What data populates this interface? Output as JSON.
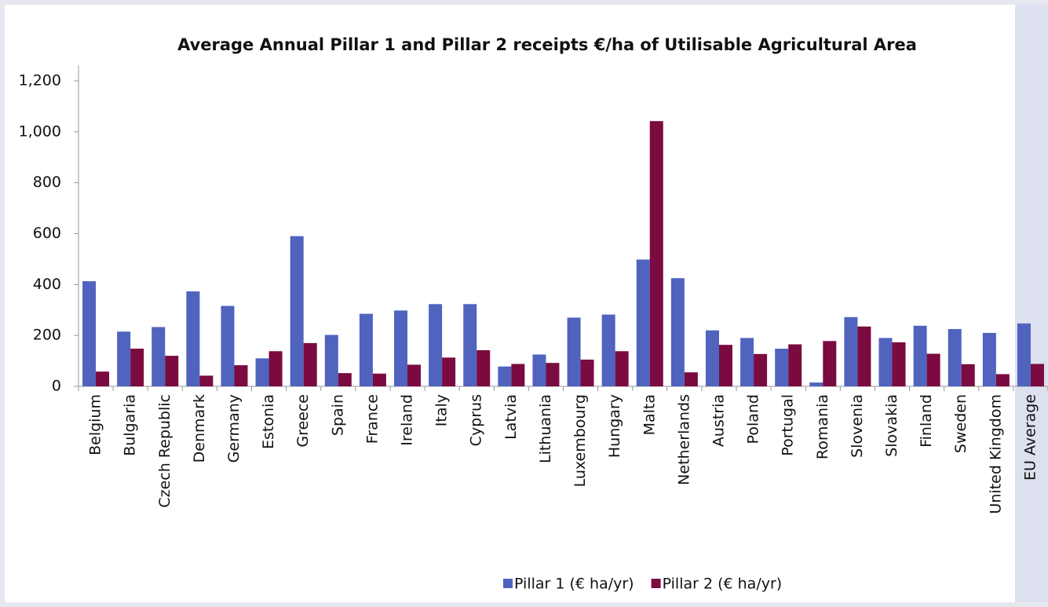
{
  "chart_data": {
    "type": "bar",
    "title": "Average Annual Pillar 1 and Pillar 2 receipts €/ha of Utilisable Agricultural Area",
    "categories": [
      "Belgium",
      "Bulgaria",
      "Czech Republic",
      "Denmark",
      "Germany",
      "Estonia",
      "Greece",
      "Spain",
      "France",
      "Ireland",
      "Italy",
      "Cyprus",
      "Latvia",
      "Lithuania",
      "Luxembourg",
      "Hungary",
      "Malta",
      "Netherlands",
      "Austria",
      "Poland",
      "Portugal",
      "Romania",
      "Slovenia",
      "Slovakia",
      "Finland",
      "Sweden",
      "United Kingdom",
      "EU Average"
    ],
    "series": [
      {
        "name": "Pillar 1 (€ ha/yr)",
        "color": "#4f63bf",
        "values": [
          413,
          215,
          233,
          373,
          316,
          110,
          590,
          202,
          285,
          298,
          323,
          323,
          78,
          125,
          270,
          282,
          498,
          425,
          220,
          190,
          148,
          15,
          272,
          190,
          238,
          225,
          210,
          247
        ]
      },
      {
        "name": "Pillar 2 (€ ha/yr)",
        "color": "#7a0a3f",
        "values": [
          58,
          148,
          120,
          42,
          83,
          138,
          170,
          52,
          50,
          85,
          113,
          142,
          88,
          92,
          105,
          138,
          1042,
          55,
          163,
          127,
          165,
          178,
          235,
          173,
          128,
          87,
          48,
          88
        ]
      }
    ],
    "ylim": [
      0,
      1200
    ],
    "yticks": [
      0,
      200,
      400,
      600,
      800,
      {
        "value": 1000,
        "label": "1,000"
      },
      {
        "value": 1200,
        "label": "1,200"
      }
    ],
    "grid": false,
    "legend": "bottom"
  }
}
